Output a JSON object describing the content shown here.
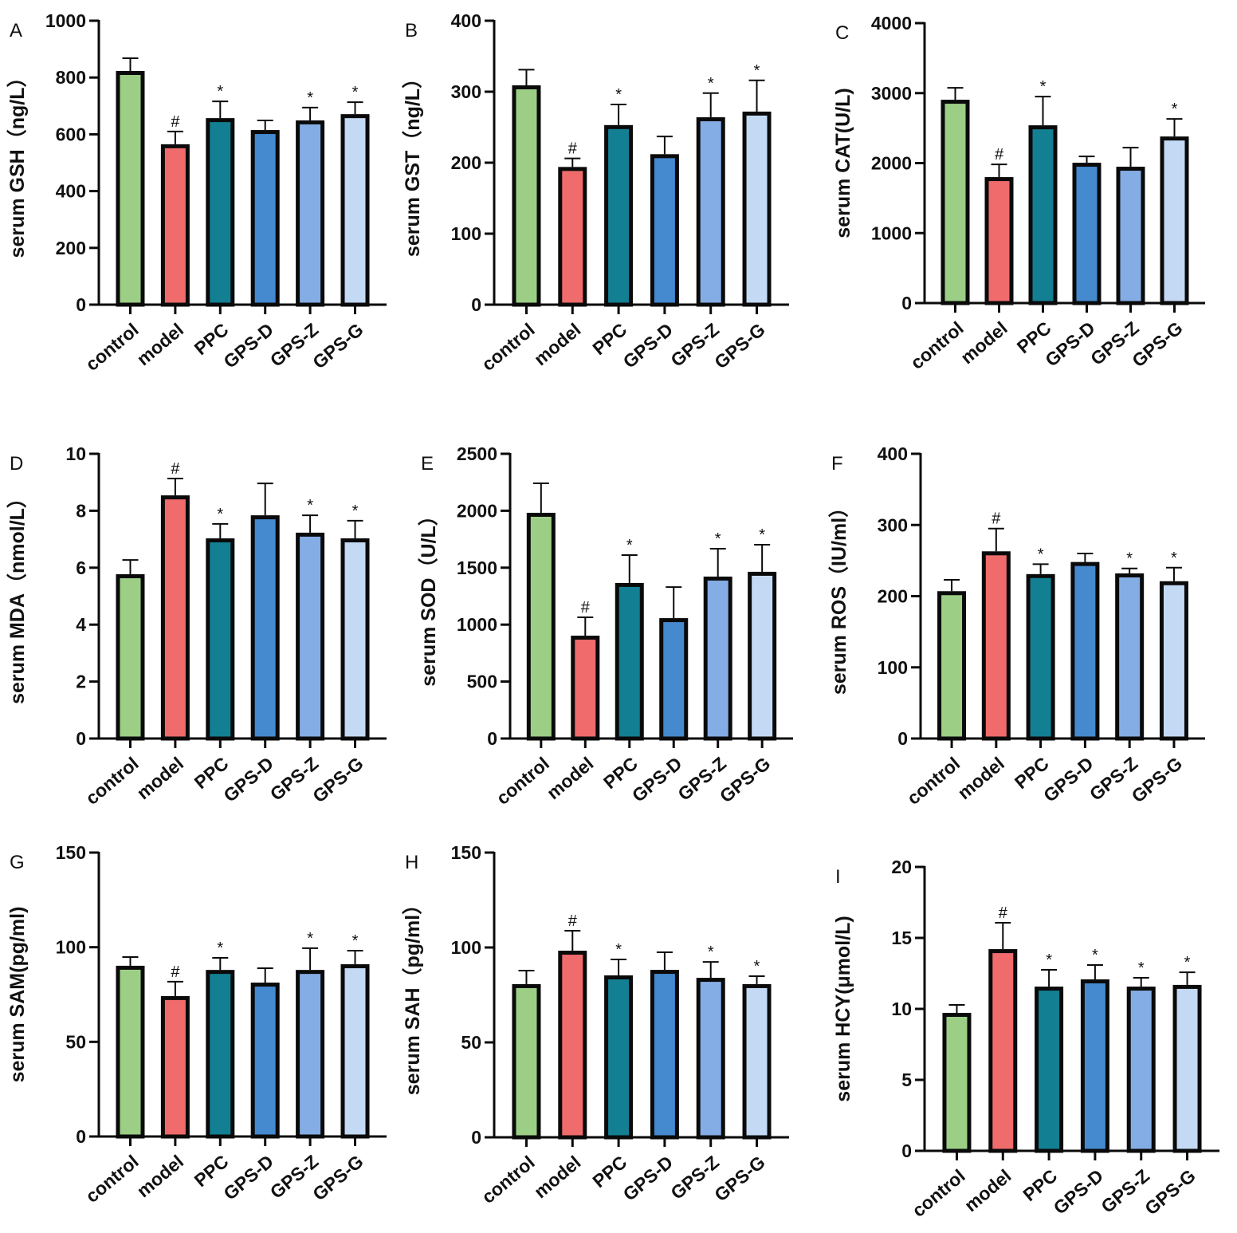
{
  "colors": {
    "control": "#9ccf85",
    "model": "#ef6b6c",
    "PPC": "#137f93",
    "GPS-D": "#4589cf",
    "GPS-Z": "#85ade5",
    "GPS-G": "#c4d9f4",
    "outline": "#0a0a0a"
  },
  "chart_data": [
    {
      "type": "bar",
      "panel": "A",
      "ylabel": "serum GSH（ng/L）",
      "ylim": [
        0,
        1000
      ],
      "yticks": [
        "0",
        "200",
        "400",
        "600",
        "800",
        "1000"
      ],
      "categories": [
        "control",
        "model",
        "PPC",
        "GPS-D",
        "GPS-Z",
        "GPS-G"
      ],
      "values": [
        823,
        565,
        657,
        615,
        649,
        671
      ],
      "error_upper": [
        868,
        610,
        716,
        649,
        694,
        713
      ],
      "annotations": [
        "",
        "#",
        "*",
        "",
        "*",
        "*"
      ]
    },
    {
      "type": "bar",
      "panel": "B",
      "ylabel": "serum GST（ng/L）",
      "ylim": [
        0,
        400
      ],
      "yticks": [
        "0",
        "100",
        "200",
        "300",
        "400"
      ],
      "categories": [
        "control",
        "model",
        "PPC",
        "GPS-D",
        "GPS-Z",
        "GPS-G"
      ],
      "values": [
        309,
        194,
        253,
        212,
        264,
        272
      ],
      "error_upper": [
        331,
        206,
        282,
        237,
        298,
        316
      ],
      "annotations": [
        "",
        "#",
        "*",
        "",
        "*",
        "*"
      ]
    },
    {
      "type": "bar",
      "panel": "C",
      "ylabel": "serum CAT(U/L)",
      "ylim": [
        0,
        4000
      ],
      "yticks": [
        "0",
        "1000",
        "2000",
        "3000",
        "4000"
      ],
      "categories": [
        "control",
        "model",
        "PPC",
        "GPS-D",
        "GPS-Z",
        "GPS-G"
      ],
      "values": [
        2905,
        1800,
        2540,
        2005,
        1948,
        2380
      ],
      "error_upper": [
        3075,
        1982,
        2950,
        2096,
        2221,
        2631
      ],
      "annotations": [
        "",
        "#",
        "*",
        "",
        "",
        "*"
      ]
    },
    {
      "type": "bar",
      "panel": "D",
      "ylabel": "serum MDA（nmol/L）",
      "ylim": [
        0,
        10
      ],
      "yticks": [
        "0",
        "2",
        "4",
        "6",
        "8",
        "10"
      ],
      "categories": [
        "control",
        "model",
        "PPC",
        "GPS-D",
        "GPS-Z",
        "GPS-G"
      ],
      "values": [
        5.77,
        8.54,
        7.03,
        7.84,
        7.23,
        7.03
      ],
      "error_upper": [
        6.27,
        9.13,
        7.54,
        8.96,
        7.84,
        7.65
      ],
      "annotations": [
        "",
        "#",
        "*",
        "",
        "*",
        "*"
      ]
    },
    {
      "type": "bar",
      "panel": "E",
      "ylabel": "serum SOD（U/L）",
      "ylim": [
        0,
        2500
      ],
      "yticks": [
        "0",
        "500",
        "1000",
        "1500",
        "2000",
        "2500"
      ],
      "categories": [
        "control",
        "model",
        "PPC",
        "GPS-D",
        "GPS-Z",
        "GPS-G"
      ],
      "values": [
        1982,
        903,
        1366,
        1057,
        1422,
        1464
      ],
      "error_upper": [
        2241,
        1064,
        1611,
        1330,
        1667,
        1702
      ],
      "annotations": [
        "",
        "#",
        "*",
        "",
        "*",
        "*"
      ]
    },
    {
      "type": "bar",
      "panel": "F",
      "ylabel": "serum ROS（IU/ml）",
      "ylim": [
        0,
        400
      ],
      "yticks": [
        "0",
        "100",
        "200",
        "300",
        "400"
      ],
      "categories": [
        "control",
        "model",
        "PPC",
        "GPS-D",
        "GPS-Z",
        "GPS-G"
      ],
      "values": [
        207,
        263,
        231,
        248,
        232,
        221
      ],
      "error_upper": [
        223,
        295,
        245,
        260,
        239,
        240
      ],
      "annotations": [
        "",
        "#",
        "*",
        "",
        "*",
        "*"
      ]
    },
    {
      "type": "bar",
      "panel": "G",
      "ylabel": "serum SAM(pg/ml)",
      "ylim": [
        0,
        150
      ],
      "yticks": [
        "0",
        "50",
        "100",
        "150"
      ],
      "categories": [
        "control",
        "model",
        "PPC",
        "GPS-D",
        "GPS-Z",
        "GPS-G"
      ],
      "values": [
        90.2,
        74.2,
        88,
        81.3,
        88,
        91
      ],
      "error_upper": [
        94.8,
        81.8,
        94.4,
        88.9,
        99.5,
        98.2
      ],
      "annotations": [
        "",
        "#",
        "*",
        "",
        "*",
        "*"
      ]
    },
    {
      "type": "bar",
      "panel": "H",
      "ylabel": "serum SAH（pg/ml）",
      "ylim": [
        0,
        150
      ],
      "yticks": [
        "0",
        "50",
        "100",
        "150"
      ],
      "categories": [
        "control",
        "model",
        "PPC",
        "GPS-D",
        "GPS-Z",
        "GPS-G"
      ],
      "values": [
        80.7,
        98.3,
        85.3,
        88.2,
        84,
        80.7
      ],
      "error_upper": [
        87.8,
        108.8,
        93.7,
        97.5,
        92.4,
        84.9
      ],
      "annotations": [
        "",
        "#",
        "*",
        "",
        "*",
        "*"
      ]
    },
    {
      "type": "bar",
      "panel": "I",
      "ylabel": "serum HCY(μmol/L)",
      "ylim": [
        0,
        20
      ],
      "yticks": [
        "0",
        "5",
        "10",
        "15",
        "20"
      ],
      "categories": [
        "control",
        "model",
        "PPC",
        "GPS-D",
        "GPS-Z",
        "GPS-G"
      ],
      "values": [
        9.72,
        14.21,
        11.57,
        12.08,
        11.57,
        11.69
      ],
      "error_upper": [
        10.28,
        16.07,
        12.75,
        13.09,
        12.19,
        12.58
      ],
      "annotations": [
        "",
        "#",
        "*",
        "*",
        "*",
        "*"
      ]
    }
  ]
}
